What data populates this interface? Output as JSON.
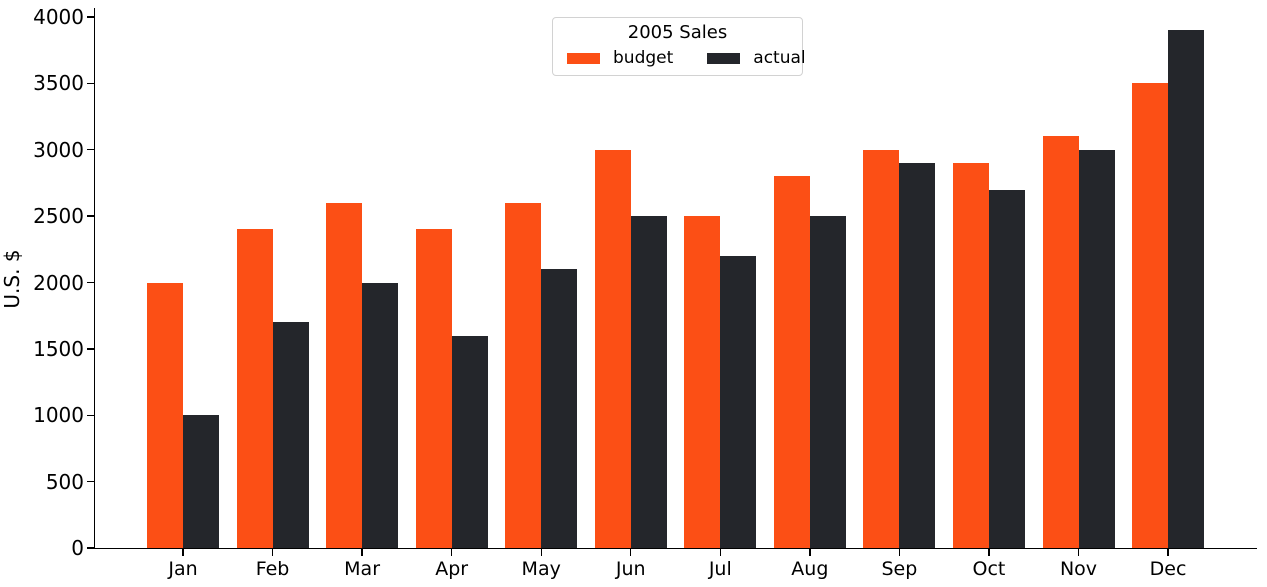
{
  "legend": {
    "title": "2005 Sales",
    "entries": [
      {
        "label": "budget",
        "color": "#FC4F15"
      },
      {
        "label": "actual",
        "color": "#24262B"
      }
    ]
  },
  "chart_data": {
    "type": "bar",
    "title": "2005 Sales",
    "xlabel": "",
    "ylabel": "U.S. $",
    "categories": [
      "Jan",
      "Feb",
      "Mar",
      "Apr",
      "May",
      "Jun",
      "Jul",
      "Aug",
      "Sep",
      "Oct",
      "Nov",
      "Dec"
    ],
    "series": [
      {
        "name": "budget",
        "color": "#FC4F15",
        "values": [
          2000,
          2400,
          2600,
          2400,
          2600,
          3000,
          2500,
          2800,
          3000,
          2900,
          3100,
          3500
        ]
      },
      {
        "name": "actual",
        "color": "#24262B",
        "values": [
          1000,
          1700,
          2000,
          1600,
          2100,
          2500,
          2200,
          2500,
          2900,
          2700,
          3000,
          3900
        ]
      }
    ],
    "ylim": [
      0,
      4000
    ],
    "yticks": [
      0,
      500,
      1000,
      1500,
      2000,
      2500,
      3000,
      3500,
      4000
    ],
    "grid": false,
    "legend_position": "upper center",
    "bar_colors": {
      "budget": "#FC4F15",
      "actual": "#24262B"
    }
  }
}
